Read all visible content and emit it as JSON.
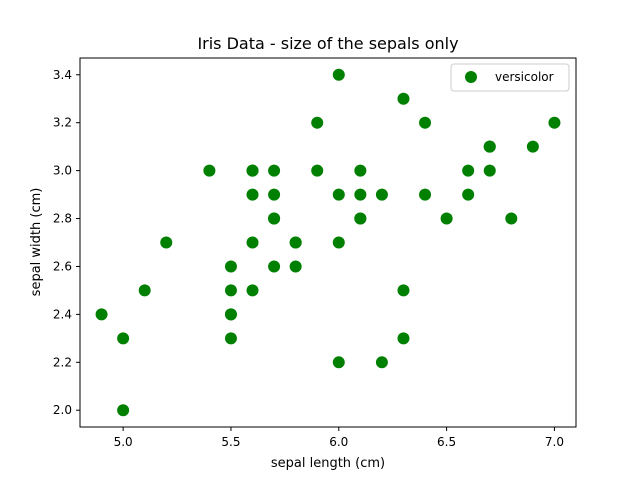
{
  "chart_data": {
    "type": "scatter",
    "title": "Iris Data - size of the sepals only",
    "xlabel": "sepal length (cm)",
    "ylabel": "sepal width (cm)",
    "xlim": [
      4.8,
      7.1
    ],
    "ylim": [
      1.93,
      3.47
    ],
    "x_ticks": [
      "5.0",
      "5.5",
      "6.0",
      "6.5",
      "7.0"
    ],
    "y_ticks": [
      "2.0",
      "2.2",
      "2.4",
      "2.6",
      "2.8",
      "3.0",
      "3.2",
      "3.4"
    ],
    "grid": false,
    "legend_position": "top-right",
    "series": [
      {
        "name": "versicolor",
        "color": "#008000",
        "x": [
          7.0,
          6.4,
          6.9,
          5.5,
          6.5,
          5.7,
          6.3,
          4.9,
          6.6,
          5.2,
          5.0,
          5.9,
          6.0,
          6.1,
          5.6,
          6.7,
          5.6,
          5.8,
          6.2,
          5.6,
          5.9,
          6.1,
          6.3,
          6.1,
          6.4,
          6.6,
          6.8,
          6.7,
          6.0,
          5.7,
          5.5,
          5.5,
          5.8,
          6.0,
          5.4,
          6.0,
          6.7,
          6.3,
          5.6,
          5.5,
          5.5,
          6.1,
          5.8,
          5.0,
          5.6,
          5.7,
          5.7,
          6.2,
          5.1,
          5.7
        ],
        "y": [
          3.2,
          3.2,
          3.1,
          2.3,
          2.8,
          2.8,
          3.3,
          2.4,
          2.9,
          2.7,
          2.0,
          3.0,
          2.2,
          2.9,
          2.9,
          3.1,
          3.0,
          2.7,
          2.2,
          2.5,
          3.2,
          2.8,
          2.5,
          2.8,
          2.9,
          3.0,
          2.8,
          3.0,
          2.9,
          2.6,
          2.4,
          2.4,
          2.7,
          2.7,
          3.0,
          3.4,
          3.1,
          2.3,
          3.0,
          2.5,
          2.6,
          3.0,
          2.6,
          2.3,
          2.7,
          3.0,
          2.9,
          2.9,
          2.5,
          2.8
        ]
      }
    ]
  }
}
